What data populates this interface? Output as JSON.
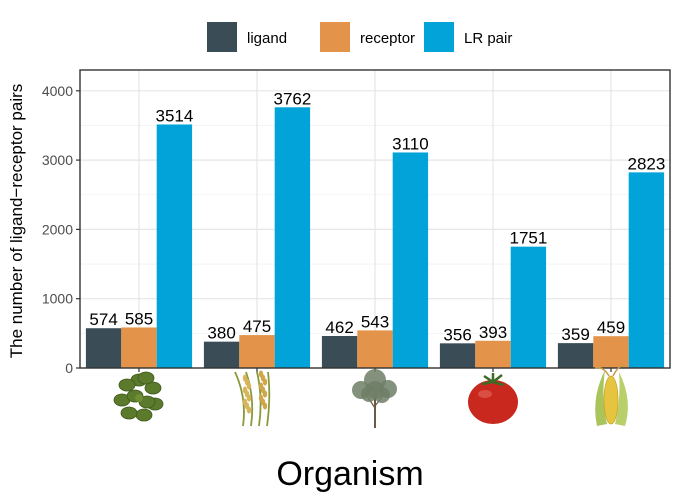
{
  "chart_data": {
    "type": "bar",
    "xlabel": "Organism",
    "ylabel": "The number of ligand−receptor pairs",
    "ylim": [
      0,
      4300
    ],
    "yticks": [
      0,
      1000,
      2000,
      3000,
      4000
    ],
    "categories": [
      "Arabidopsis",
      "Rice",
      "Poplar",
      "Tomato",
      "Maize"
    ],
    "category_icons": [
      "arabidopsis-rosette-icon",
      "rice-panicle-icon",
      "poplar-tree-icon",
      "tomato-icon",
      "maize-cob-icon"
    ],
    "series": [
      {
        "name": "ligand",
        "color": "#3a4d57",
        "values": [
          574,
          380,
          462,
          356,
          359
        ]
      },
      {
        "name": "receptor",
        "color": "#e3944a",
        "values": [
          585,
          475,
          543,
          393,
          459
        ]
      },
      {
        "name": "LR pair",
        "color": "#02a3d8",
        "values": [
          3514,
          3762,
          3110,
          1751,
          2823
        ]
      }
    ],
    "legend_position": "top",
    "grid": true
  }
}
